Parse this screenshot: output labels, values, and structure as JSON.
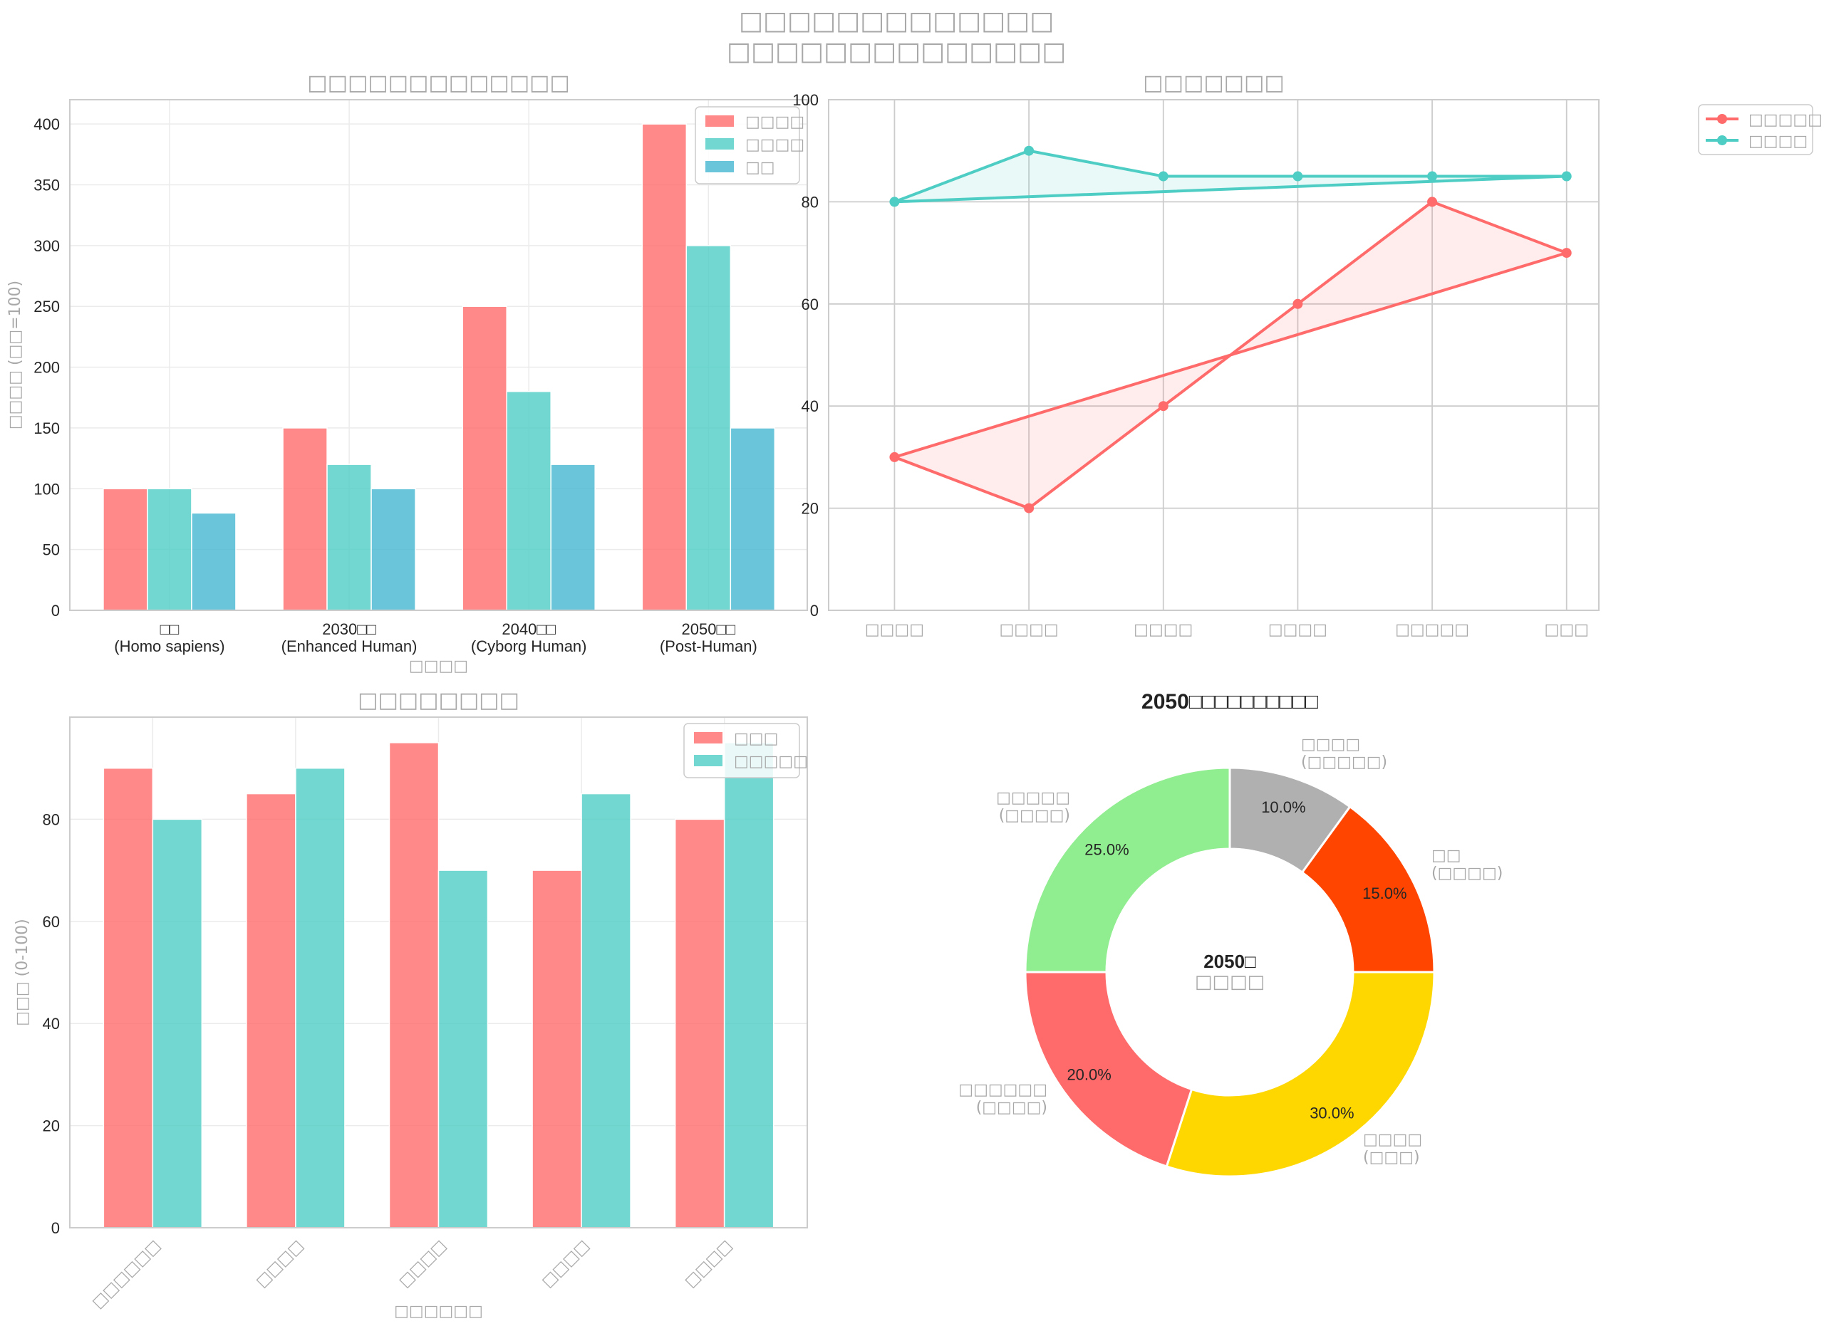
{
  "title": {
    "line1": "□□□□□□□□□□□□□",
    "line2": "□□□□□□□□□□□□□□"
  },
  "chart_data": [
    {
      "type": "bar",
      "title": "□□□□□□□□□□□□□",
      "xlabel": "□□□□",
      "ylabel": "□□□□ (□□=100)",
      "ylim": [
        0,
        420
      ],
      "yticks": [
        0,
        50,
        100,
        150,
        200,
        250,
        300,
        350,
        400
      ],
      "categories": [
        {
          "line1": "□□",
          "line2": "(Homo sapiens)"
        },
        {
          "line1": "2030□□",
          "line2": "(Enhanced Human)"
        },
        {
          "line1": "2040□□",
          "line2": "(Cyborg Human)"
        },
        {
          "line1": "2050□□",
          "line2": "(Post-Human)"
        }
      ],
      "series": [
        {
          "name": "□□□□",
          "color": "#FF6B6B",
          "values": [
            100,
            150,
            250,
            400
          ]
        },
        {
          "name": "□□□□",
          "color": "#4ECDC4",
          "values": [
            100,
            120,
            180,
            300
          ]
        },
        {
          "name": "□□",
          "color": "#45B7D1",
          "values": [
            80,
            100,
            120,
            150
          ]
        }
      ],
      "grid": true,
      "legend": "top-right"
    },
    {
      "type": "line",
      "title": "□□□□□□□",
      "ylim": [
        0,
        100
      ],
      "yticks": [
        0,
        20,
        40,
        60,
        80,
        100
      ],
      "categories": [
        "□□□□",
        "□□□□",
        "□□□□",
        "□□□□",
        "□□□□□",
        "□□□"
      ],
      "series": [
        {
          "name": "□□□□□",
          "color": "#FF6B6B",
          "values": [
            30,
            20,
            40,
            60,
            80,
            70
          ]
        },
        {
          "name": "□□□□",
          "color": "#4ECDC4",
          "values": [
            80,
            90,
            85,
            85,
            85,
            85
          ]
        }
      ],
      "closed": true,
      "grid": true,
      "legend": "outside-right"
    },
    {
      "type": "bar",
      "title": "□□□□□□□□",
      "xlabel": "□□□□□□",
      "ylabel": "□□□ (0-100)",
      "ylim": [
        0,
        100
      ],
      "yticks": [
        0,
        20,
        40,
        60,
        80
      ],
      "categories": [
        "□□□□□□",
        "□□□□",
        "□□□□",
        "□□□□",
        "□□□□"
      ],
      "series": [
        {
          "name": "□□□",
          "color": "#FF6B6B",
          "values": [
            90,
            85,
            95,
            70,
            80
          ]
        },
        {
          "name": "□□□□□",
          "color": "#4ECDC4",
          "values": [
            80,
            90,
            70,
            85,
            95
          ]
        }
      ],
      "grid": true,
      "legend": "top-right"
    },
    {
      "type": "pie",
      "title": "2050□□□□□□□□□□",
      "center_label": {
        "line1": "2050□",
        "line2": "□□□□"
      },
      "slices": [
        {
          "label1": "□□□□",
          "label2": "(□□□□□)",
          "value": 10,
          "pct": "10.0%",
          "color": "#B0B0B0"
        },
        {
          "label1": "□□",
          "label2": "(□□□□)",
          "value": 15,
          "pct": "15.0%",
          "color": "#FF4500"
        },
        {
          "label1": "□□□□",
          "label2": "(□□□)",
          "value": 30,
          "pct": "30.0%",
          "color": "#FFD700"
        },
        {
          "label1": "□□□□□□",
          "label2": "(□□□□)",
          "value": 20,
          "pct": "20.0%",
          "color": "#FF6B6B"
        },
        {
          "label1": "□□□□□",
          "label2": "(□□□□)",
          "value": 25,
          "pct": "25.0%",
          "color": "#90EE90"
        }
      ]
    }
  ]
}
